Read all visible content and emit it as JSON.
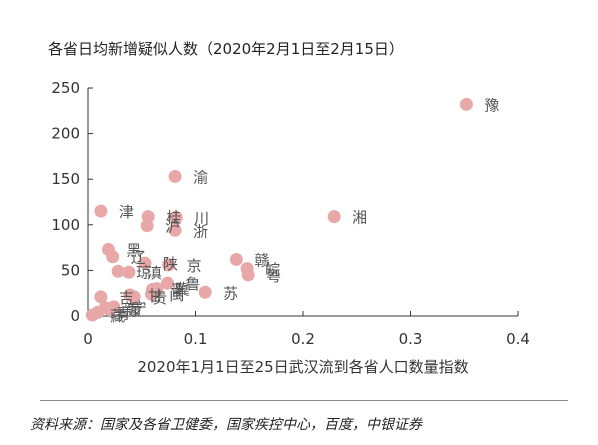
{
  "title": "各省日均新增疑似人数（2020年2月1日至2月15日）",
  "source": "资料来源：国家及各省卫健委，国家疾控中心，百度，中银证券",
  "colors": {
    "point": "#E8A8A8",
    "label": "#555555",
    "axis": "#333333"
  },
  "chart_data": {
    "type": "scatter",
    "title": "各省日均新增疑似人数（2020年2月1日至2月15日）",
    "xlabel": "2020年1月1日至25日武汉流到各省人口数量指数",
    "ylabel": "",
    "xlim": [
      0,
      0.4
    ],
    "ylim": [
      0,
      250
    ],
    "xticks": [
      "0",
      "0.1",
      "0.2",
      "0.3",
      "0.4"
    ],
    "yticks": [
      "0",
      "50",
      "100",
      "150",
      "200",
      "250"
    ],
    "grid": false,
    "points": [
      {
        "x": 0.352,
        "y": 232,
        "label": "豫"
      },
      {
        "x": 0.229,
        "y": 109,
        "label": "湘"
      },
      {
        "x": 0.081,
        "y": 153,
        "label": "渝"
      },
      {
        "x": 0.012,
        "y": 115,
        "label": "津"
      },
      {
        "x": 0.056,
        "y": 109,
        "label": "桂"
      },
      {
        "x": 0.082,
        "y": 108,
        "label": "川"
      },
      {
        "x": 0.055,
        "y": 99,
        "label": "沪"
      },
      {
        "x": 0.081,
        "y": 94,
        "label": "浙"
      },
      {
        "x": 0.019,
        "y": 73,
        "label": "黑"
      },
      {
        "x": 0.023,
        "y": 65,
        "label": "辽"
      },
      {
        "x": 0.138,
        "y": 62,
        "label": "赣"
      },
      {
        "x": 0.148,
        "y": 52,
        "label": "皖"
      },
      {
        "x": 0.149,
        "y": 45,
        "label": "粤"
      },
      {
        "x": 0.053,
        "y": 58,
        "label": "陕"
      },
      {
        "x": 0.075,
        "y": 56,
        "label": "京"
      },
      {
        "x": 0.028,
        "y": 49,
        "label": "琼"
      },
      {
        "x": 0.038,
        "y": 48,
        "label": "滇"
      },
      {
        "x": 0.074,
        "y": 36,
        "label": "鲁"
      },
      {
        "x": 0.109,
        "y": 26,
        "label": "苏"
      },
      {
        "x": 0.06,
        "y": 29,
        "label": "晋"
      },
      {
        "x": 0.064,
        "y": 30,
        "label": "冀"
      },
      {
        "x": 0.059,
        "y": 24,
        "label": "闽"
      },
      {
        "x": 0.043,
        "y": 21,
        "label": "贵"
      },
      {
        "x": 0.012,
        "y": 21,
        "label": "吉"
      },
      {
        "x": 0.039,
        "y": 23,
        "label": "甘"
      },
      {
        "x": 0.024,
        "y": 10,
        "label": "宁"
      },
      {
        "x": 0.016,
        "y": 9,
        "label": "新"
      },
      {
        "x": 0.02,
        "y": 7,
        "label": "蒙"
      },
      {
        "x": 0.009,
        "y": 4,
        "label": "青"
      },
      {
        "x": 0.004,
        "y": 1,
        "label": "藏"
      }
    ]
  }
}
